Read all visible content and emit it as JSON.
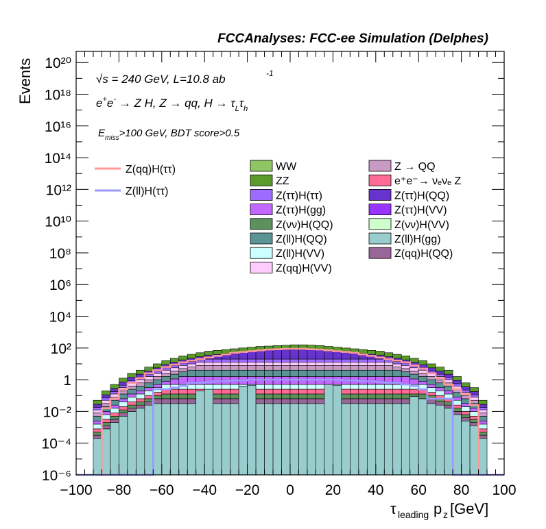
{
  "header": {
    "title": "FCCAnalyses: FCC-ee Simulation (Delphes)"
  },
  "annotations": {
    "energy": "√s = 240 GeV, L=10.8 ab",
    "energy_exp": "-1",
    "process": "e⁺e⁻ → Z H, Z → qq, H → τ_L τ_h",
    "cuts": "E_miss>100 GeV, BDT score>0.5"
  },
  "colors": {
    "WW": "#8fc663",
    "ZZ": "#5a9b2a",
    "Z_QQ": "#c89ac4",
    "ee_nunuZ": "#ff6b94",
    "Ztautau_Htautau": "#9d6bff",
    "Ztautau_HQQ": "#6633cc",
    "Ztautau_Hgg": "#c267ff",
    "Ztautau_HVV": "#9933ff",
    "Znunu_HQQ": "#5d915c",
    "Znunu_HVV": "#ccffcc",
    "Zll_HQQ": "#5b9494",
    "Zll_Hgg": "#99cccc",
    "Zll_HVV": "#ccffff",
    "Zqq_HQQ": "#996699",
    "Zqq_HVV": "#ffccff",
    "sig_qq": "#ff9999",
    "sig_ll": "#9999ff"
  },
  "chart_data": {
    "type": "bar",
    "title": "FCCAnalyses: FCC-ee Simulation (Delphes)",
    "xlabel": "τ_leading p_z [GeV]",
    "ylabel": "Events",
    "xlim": [
      -100,
      100
    ],
    "ylim_log10": [
      -6,
      20.7
    ],
    "log_y": true,
    "grid": false,
    "x_ticks": [
      "−100",
      "−80",
      "−60",
      "−40",
      "−20",
      "0",
      "20",
      "40",
      "60",
      "80",
      "100"
    ],
    "y_ticks": [
      "10⁻⁶",
      "10⁻⁴",
      "10⁻²",
      "1",
      "10²",
      "10⁴",
      "10⁶",
      "10⁸",
      "10¹⁰",
      "10¹²",
      "10¹⁴",
      "10¹⁶",
      "10¹⁸",
      "10²⁰"
    ],
    "bin_edges": [
      -100,
      -96,
      -92,
      -88,
      -84,
      -80,
      -76,
      -72,
      -68,
      -64,
      -60,
      -56,
      -52,
      -48,
      -44,
      -40,
      -36,
      -32,
      -28,
      -24,
      -20,
      -16,
      -12,
      -8,
      -4,
      0,
      4,
      8,
      12,
      16,
      20,
      24,
      28,
      32,
      36,
      40,
      44,
      48,
      52,
      56,
      60,
      64,
      68,
      72,
      76,
      80,
      84,
      88,
      92,
      96,
      100
    ],
    "stack_order_bottom_to_top": [
      "Zll_Hgg",
      "Zqq_HQQ",
      "Znunu_HQQ",
      "ee_nunuZ",
      "Zll_HVV",
      "Ztautau_Hgg",
      "Zll_HQQ",
      "Z_QQ",
      "Zqq_HVV",
      "Ztautau_Htautau",
      "Ztautau_HQQ",
      "ZZ",
      "WW"
    ],
    "stack_totals_log10": [
      -6,
      -6,
      -1.3,
      -0.7,
      -0.3,
      0.1,
      0.4,
      0.6,
      0.8,
      1.0,
      1.2,
      1.35,
      1.5,
      1.6,
      1.7,
      1.8,
      1.85,
      1.9,
      1.95,
      2.0,
      2.05,
      2.1,
      2.12,
      2.15,
      2.17,
      2.2,
      2.2,
      2.18,
      2.15,
      2.1,
      2.05,
      2.0,
      1.95,
      1.9,
      1.85,
      1.8,
      1.7,
      1.6,
      1.5,
      1.35,
      1.2,
      1.0,
      0.8,
      0.6,
      0.2,
      -0.2,
      -0.5,
      -1.3,
      -6,
      -6
    ],
    "legend": [
      {
        "key": "sig_qq",
        "label": "Z(qq)H(ττ)",
        "style": "line"
      },
      {
        "key": "sig_ll",
        "label": "Z(ll)H(ττ)",
        "style": "line"
      },
      {
        "key": "WW",
        "label": "WW",
        "style": "box"
      },
      {
        "key": "ZZ",
        "label": "ZZ",
        "style": "box"
      },
      {
        "key": "Ztautau_Htautau",
        "label": "Z(ττ)H(ττ)",
        "style": "box"
      },
      {
        "key": "Ztautau_Hgg",
        "label": "Z(ττ)H(gg)",
        "style": "box"
      },
      {
        "key": "Znunu_HQQ",
        "label": "Z(νν)H(QQ)",
        "style": "box"
      },
      {
        "key": "Zll_HQQ",
        "label": "Z(ll)H(QQ)",
        "style": "box"
      },
      {
        "key": "Zll_HVV",
        "label": "Z(ll)H(VV)",
        "style": "box"
      },
      {
        "key": "Zqq_HVV",
        "label": "Z(qq)H(VV)",
        "style": "box"
      },
      {
        "key": "Z_QQ",
        "label": "Z → QQ",
        "style": "box"
      },
      {
        "key": "ee_nunuZ",
        "label": "e⁺e⁻→ νₑνₑ Z",
        "style": "box"
      },
      {
        "key": "Ztautau_HQQ",
        "label": "Z(ττ)H(QQ)",
        "style": "box"
      },
      {
        "key": "Ztautau_HVV",
        "label": "Z(ττ)H(VV)",
        "style": "box"
      },
      {
        "key": "Znunu_HVV",
        "label": "Z(νν)H(VV)",
        "style": "box"
      },
      {
        "key": "Zll_Hgg",
        "label": "Z(ll)H(gg)",
        "style": "box"
      },
      {
        "key": "Zqq_HQQ",
        "label": "Z(qq)H(QQ)",
        "style": "box"
      }
    ],
    "signal_qq_log10": [
      -6,
      -6,
      -6,
      -1.8,
      -1.2,
      -0.6,
      -0.2,
      0.1,
      0.4,
      0.6,
      0.8,
      0.95,
      1.1,
      1.2,
      1.3,
      1.4,
      1.5,
      1.6,
      1.7,
      1.75,
      1.8,
      1.85,
      1.9,
      1.92,
      1.95,
      1.95,
      1.95,
      1.92,
      1.9,
      1.85,
      1.8,
      1.75,
      1.7,
      1.6,
      1.5,
      1.4,
      1.3,
      1.2,
      1.1,
      0.9,
      0.7,
      0.4,
      0.1,
      -0.3,
      -0.6,
      -0.9,
      -1.6,
      -6,
      -6,
      -6
    ],
    "signal_ll_log10": [
      -6,
      -6,
      -6,
      -6,
      -6,
      -6,
      -6,
      -6,
      -6,
      -0.6,
      -0.6,
      -0.5,
      -0.4,
      -0.2,
      -0.2,
      -0.15,
      -0.1,
      -0.1,
      -0.05,
      -0.05,
      0,
      0,
      0,
      0,
      0,
      0,
      0,
      0,
      0,
      0,
      0,
      -0.05,
      -0.05,
      -0.1,
      -0.1,
      -0.15,
      -0.2,
      -0.2,
      -0.3,
      -0.4,
      -0.6,
      -1.2,
      -1.2,
      -1.2,
      -6,
      -6,
      -6,
      -6,
      -6,
      -6
    ]
  }
}
